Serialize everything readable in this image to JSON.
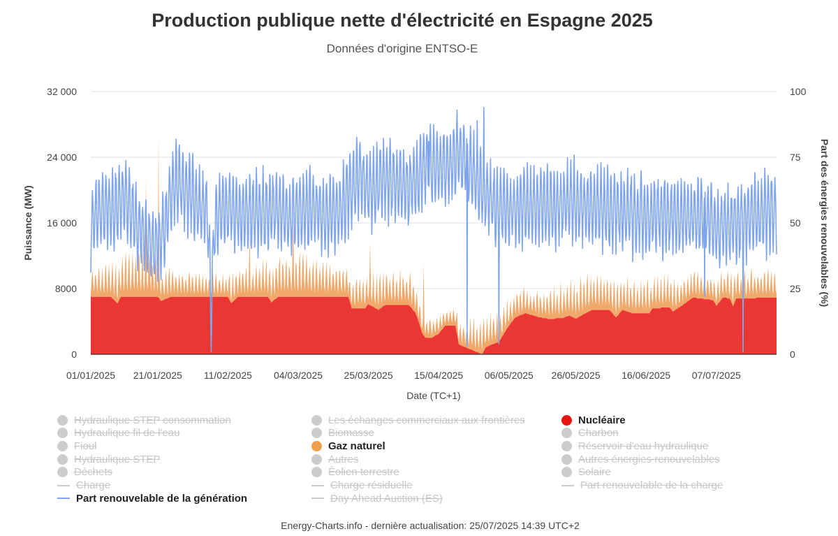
{
  "chart_data": {
    "type": "area",
    "title": "Production publique nette d'électricité en Espagne 2025",
    "subtitle": "Données d'origine ENTSO-E",
    "xlabel": "Date (TC+1)",
    "ylabel_left": "Puissance (MW)",
    "ylabel_right": "Part des énergies renouvelables (%)",
    "ylim_left": [
      0,
      32000
    ],
    "ylim_right": [
      0,
      100
    ],
    "yticks_left": [
      "0",
      "8000",
      "16 000",
      "24 000",
      "32 000"
    ],
    "yticks_right": [
      "0",
      "25",
      "50",
      "75",
      "100"
    ],
    "xticks": [
      "01/01/2025",
      "21/01/2025",
      "11/02/2025",
      "04/03/2025",
      "25/03/2025",
      "15/04/2025",
      "06/05/2025",
      "26/05/2025",
      "16/06/2025",
      "07/07/2025"
    ],
    "x_range_days": [
      0,
      205
    ],
    "grid": true,
    "series": [
      {
        "name": "Nucléaire",
        "kind": "area",
        "axis": "left",
        "color": "#e8140f",
        "points_day_mw": [
          [
            0,
            7000
          ],
          [
            6,
            7000
          ],
          [
            8,
            6200
          ],
          [
            9,
            7000
          ],
          [
            20,
            7000
          ],
          [
            21,
            6500
          ],
          [
            24,
            7000
          ],
          [
            41,
            7000
          ],
          [
            42,
            6200
          ],
          [
            44,
            7000
          ],
          [
            53,
            7000
          ],
          [
            54,
            6300
          ],
          [
            56,
            7000
          ],
          [
            70,
            7000
          ],
          [
            71,
            7000
          ],
          [
            77,
            7000
          ],
          [
            78,
            5600
          ],
          [
            82,
            5600
          ],
          [
            83,
            6100
          ],
          [
            86,
            5400
          ],
          [
            88,
            6000
          ],
          [
            95,
            6000
          ],
          [
            97,
            5100
          ],
          [
            98,
            4000
          ],
          [
            99,
            2600
          ],
          [
            100,
            2000
          ],
          [
            102,
            2000
          ],
          [
            104,
            2500
          ],
          [
            106,
            3500
          ],
          [
            109,
            3500
          ],
          [
            110,
            1200
          ],
          [
            117,
            0
          ],
          [
            118,
            800
          ],
          [
            120,
            1200
          ],
          [
            122,
            1500
          ],
          [
            125,
            3500
          ],
          [
            127,
            4500
          ],
          [
            130,
            5000
          ],
          [
            134,
            4500
          ],
          [
            137,
            4300
          ],
          [
            141,
            4400
          ],
          [
            143,
            4700
          ],
          [
            145,
            4300
          ],
          [
            147,
            4800
          ],
          [
            150,
            5400
          ],
          [
            155,
            5400
          ],
          [
            157,
            4500
          ],
          [
            159,
            5400
          ],
          [
            162,
            5000
          ],
          [
            167,
            5000
          ],
          [
            168,
            5600
          ],
          [
            173,
            5700
          ],
          [
            174,
            5200
          ],
          [
            177,
            6000
          ],
          [
            180,
            6900
          ],
          [
            186,
            6600
          ],
          [
            187,
            5900
          ],
          [
            189,
            6900
          ],
          [
            191,
            6800
          ],
          [
            192,
            5800
          ],
          [
            193,
            6800
          ],
          [
            205,
            6900
          ]
        ]
      },
      {
        "name": "Gaz naturel",
        "kind": "area-stacked",
        "axis": "left",
        "color": "#f0a96b",
        "points_day_mw": [
          [
            0,
            3200
          ],
          [
            5,
            3600
          ],
          [
            12,
            5200
          ],
          [
            16,
            6000
          ],
          [
            19,
            4800
          ],
          [
            22,
            3200
          ],
          [
            30,
            2800
          ],
          [
            38,
            2600
          ],
          [
            45,
            3300
          ],
          [
            52,
            4000
          ],
          [
            58,
            4600
          ],
          [
            64,
            5000
          ],
          [
            70,
            4200
          ],
          [
            76,
            3300
          ],
          [
            82,
            3300
          ],
          [
            88,
            4000
          ],
          [
            94,
            4000
          ],
          [
            97,
            3600
          ],
          [
            100,
            2700
          ],
          [
            106,
            1800
          ],
          [
            110,
            2400
          ],
          [
            113,
            3500
          ],
          [
            117,
            3700
          ],
          [
            120,
            3300
          ],
          [
            124,
            3300
          ],
          [
            128,
            2900
          ],
          [
            135,
            3000
          ],
          [
            140,
            3800
          ],
          [
            146,
            4200
          ],
          [
            152,
            4000
          ],
          [
            158,
            3700
          ],
          [
            164,
            3600
          ],
          [
            168,
            3800
          ],
          [
            174,
            3300
          ],
          [
            180,
            3300
          ],
          [
            186,
            2900
          ],
          [
            192,
            3200
          ],
          [
            198,
            3400
          ],
          [
            205,
            3200
          ]
        ]
      },
      {
        "name": "Part renouvelable de la génération",
        "kind": "line",
        "axis": "right",
        "color": "#7fa5f0",
        "points_day_pct": [
          [
            0,
            48
          ],
          [
            3,
            57
          ],
          [
            6,
            54
          ],
          [
            10,
            60
          ],
          [
            13,
            52
          ],
          [
            16,
            45
          ],
          [
            19,
            40
          ],
          [
            22,
            48
          ],
          [
            24,
            60
          ],
          [
            26,
            67
          ],
          [
            28,
            63
          ],
          [
            32,
            57
          ],
          [
            35,
            53
          ],
          [
            36,
            14
          ],
          [
            37,
            50
          ],
          [
            40,
            56
          ],
          [
            45,
            53
          ],
          [
            50,
            54
          ],
          [
            55,
            55
          ],
          [
            60,
            53
          ],
          [
            66,
            56
          ],
          [
            70,
            53
          ],
          [
            75,
            55
          ],
          [
            78,
            64
          ],
          [
            80,
            68
          ],
          [
            84,
            62
          ],
          [
            88,
            67
          ],
          [
            92,
            64
          ],
          [
            95,
            63
          ],
          [
            98,
            68
          ],
          [
            100,
            72
          ],
          [
            102,
            70
          ],
          [
            104,
            72
          ],
          [
            106,
            70
          ],
          [
            108,
            73
          ],
          [
            110,
            76
          ],
          [
            112,
            74
          ],
          [
            114,
            68
          ],
          [
            116,
            66
          ],
          [
            118,
            62
          ],
          [
            120,
            58
          ],
          [
            122,
            55
          ],
          [
            124,
            56
          ],
          [
            126,
            55
          ],
          [
            130,
            57
          ],
          [
            135,
            56
          ],
          [
            140,
            57
          ],
          [
            145,
            58
          ],
          [
            150,
            56
          ],
          [
            155,
            55
          ],
          [
            160,
            54
          ],
          [
            165,
            53
          ],
          [
            170,
            53
          ],
          [
            175,
            52
          ],
          [
            180,
            53
          ],
          [
            185,
            52
          ],
          [
            188,
            48
          ],
          [
            190,
            50
          ],
          [
            194,
            50
          ],
          [
            198,
            53
          ],
          [
            202,
            54
          ],
          [
            205,
            55
          ]
        ]
      }
    ],
    "annotations": [],
    "legend_placement": "bottom"
  },
  "legend": {
    "items": [
      {
        "label": "Hydraulique STEP consommation",
        "symbol": "dot",
        "color": "#a0a0a0",
        "visible": false
      },
      {
        "label": "Les échanges commerciaux aux frontières",
        "symbol": "dot",
        "color": "#a0a0a0",
        "visible": false
      },
      {
        "label": "Nucléaire",
        "symbol": "dot",
        "color": "#e8140f",
        "visible": true
      },
      {
        "label": "Hydraulique fil de l'eau",
        "symbol": "dot",
        "color": "#a0a0a0",
        "visible": false
      },
      {
        "label": "Biomasse",
        "symbol": "dot",
        "color": "#a0a0a0",
        "visible": false
      },
      {
        "label": "Charbon",
        "symbol": "dot",
        "color": "#a0a0a0",
        "visible": false
      },
      {
        "label": "Fioul",
        "symbol": "dot",
        "color": "#a0a0a0",
        "visible": false
      },
      {
        "label": "Gaz naturel",
        "symbol": "dot",
        "color": "#f0a04b",
        "visible": true
      },
      {
        "label": "Réservoir d'eau hydraulique",
        "symbol": "dot",
        "color": "#a0a0a0",
        "visible": false
      },
      {
        "label": "Hydraulique STEP",
        "symbol": "dot",
        "color": "#a0a0a0",
        "visible": false
      },
      {
        "label": "Autres",
        "symbol": "dot",
        "color": "#a0a0a0",
        "visible": false
      },
      {
        "label": "Autres énergies renouvelables",
        "symbol": "dot",
        "color": "#a0a0a0",
        "visible": false
      },
      {
        "label": "Déchets",
        "symbol": "dot",
        "color": "#a0a0a0",
        "visible": false
      },
      {
        "label": "Éolien terrestre",
        "symbol": "dot",
        "color": "#a0a0a0",
        "visible": false
      },
      {
        "label": "Solaire",
        "symbol": "dot",
        "color": "#a0a0a0",
        "visible": false
      },
      {
        "label": "Charge",
        "symbol": "line",
        "color": "#a0a0a0",
        "visible": false
      },
      {
        "label": "Charge résiduelle",
        "symbol": "line",
        "color": "#a0a0a0",
        "visible": false
      },
      {
        "label": "Part renouvelable de la charge",
        "symbol": "line",
        "color": "#a0a0a0",
        "visible": false
      },
      {
        "label": "Part renouvelable de la génération",
        "symbol": "line",
        "color": "#7fa5f0",
        "visible": true
      },
      {
        "label": "Day Ahead Auction (ES)",
        "symbol": "line",
        "color": "#a0a0a0",
        "visible": false
      }
    ]
  },
  "credits": "Energy-Charts.info - dernière actualisation: 25/07/2025 14:39 UTC+2"
}
